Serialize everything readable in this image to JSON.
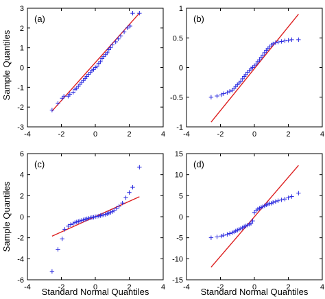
{
  "figure": {
    "ylabel": "Sample Quantiles",
    "xlabel": "Standard Normal Quantiles"
  },
  "chart_data": [
    {
      "type": "scatter",
      "panel": "(a)",
      "xlim": [
        -4,
        4
      ],
      "ylim": [
        -3,
        3
      ],
      "xticks": [
        -4,
        -2,
        0,
        2,
        4
      ],
      "yticks": [
        -3,
        -2,
        -1,
        0,
        1,
        2,
        3
      ],
      "grid": false,
      "marker_color": "#2a2adf",
      "line_color": "#dd2020",
      "reference_line": {
        "x": [
          -2.55,
          2.6
        ],
        "y": [
          -2.2,
          2.75
        ]
      },
      "points": [
        [
          -2.55,
          -2.15
        ],
        [
          -2.2,
          -1.8
        ],
        [
          -1.95,
          -1.55
        ],
        [
          -1.85,
          -1.45
        ],
        [
          -1.6,
          -1.45
        ],
        [
          -1.5,
          -1.35
        ],
        [
          -1.3,
          -1.25
        ],
        [
          -1.2,
          -1.1
        ],
        [
          -1.1,
          -1.05
        ],
        [
          -1.0,
          -0.95
        ],
        [
          -0.9,
          -0.85
        ],
        [
          -0.8,
          -0.75
        ],
        [
          -0.7,
          -0.65
        ],
        [
          -0.6,
          -0.55
        ],
        [
          -0.5,
          -0.45
        ],
        [
          -0.4,
          -0.35
        ],
        [
          -0.3,
          -0.25
        ],
        [
          -0.2,
          -0.15
        ],
        [
          -0.1,
          -0.1
        ],
        [
          0.0,
          0.0
        ],
        [
          0.1,
          0.05
        ],
        [
          0.2,
          0.2
        ],
        [
          0.3,
          0.3
        ],
        [
          0.4,
          0.45
        ],
        [
          0.5,
          0.55
        ],
        [
          0.6,
          0.65
        ],
        [
          0.7,
          0.75
        ],
        [
          0.8,
          0.9
        ],
        [
          0.9,
          1.0
        ],
        [
          1.0,
          1.15
        ],
        [
          1.2,
          1.3
        ],
        [
          1.35,
          1.45
        ],
        [
          1.5,
          1.6
        ],
        [
          1.7,
          1.8
        ],
        [
          1.9,
          2.0
        ],
        [
          2.05,
          2.1
        ],
        [
          2.2,
          2.75
        ],
        [
          2.6,
          2.75
        ]
      ]
    },
    {
      "type": "scatter",
      "panel": "(b)",
      "xlim": [
        -4,
        4
      ],
      "ylim": [
        -1,
        1
      ],
      "xticks": [
        -4,
        -2,
        0,
        2,
        4
      ],
      "yticks": [
        -1,
        -0.5,
        0,
        0.5,
        1
      ],
      "grid": false,
      "marker_color": "#2a2adf",
      "line_color": "#dd2020",
      "reference_line": {
        "x": [
          -2.55,
          2.6
        ],
        "y": [
          -0.92,
          0.9
        ]
      },
      "points": [
        [
          -2.55,
          -0.5
        ],
        [
          -2.2,
          -0.48
        ],
        [
          -1.95,
          -0.46
        ],
        [
          -1.8,
          -0.44
        ],
        [
          -1.6,
          -0.42
        ],
        [
          -1.45,
          -0.4
        ],
        [
          -1.3,
          -0.38
        ],
        [
          -1.2,
          -0.35
        ],
        [
          -1.1,
          -0.32
        ],
        [
          -1.0,
          -0.29
        ],
        [
          -0.9,
          -0.26
        ],
        [
          -0.8,
          -0.23
        ],
        [
          -0.7,
          -0.19
        ],
        [
          -0.6,
          -0.15
        ],
        [
          -0.5,
          -0.12
        ],
        [
          -0.4,
          -0.08
        ],
        [
          -0.3,
          -0.05
        ],
        [
          -0.2,
          -0.02
        ],
        [
          -0.1,
          0.0
        ],
        [
          0.0,
          0.03
        ],
        [
          0.1,
          0.06
        ],
        [
          0.2,
          0.1
        ],
        [
          0.3,
          0.13
        ],
        [
          0.4,
          0.17
        ],
        [
          0.5,
          0.21
        ],
        [
          0.6,
          0.25
        ],
        [
          0.7,
          0.29
        ],
        [
          0.8,
          0.32
        ],
        [
          0.9,
          0.35
        ],
        [
          1.0,
          0.38
        ],
        [
          1.1,
          0.4
        ],
        [
          1.25,
          0.42
        ],
        [
          1.4,
          0.43
        ],
        [
          1.6,
          0.44
        ],
        [
          1.8,
          0.45
        ],
        [
          2.0,
          0.46
        ],
        [
          2.2,
          0.47
        ],
        [
          2.6,
          0.47
        ]
      ]
    },
    {
      "type": "scatter",
      "panel": "(c)",
      "xlim": [
        -4,
        4
      ],
      "ylim": [
        -6,
        6
      ],
      "xticks": [
        -4,
        -2,
        0,
        2,
        4
      ],
      "yticks": [
        -6,
        -4,
        -2,
        0,
        2,
        4,
        6
      ],
      "grid": false,
      "marker_color": "#2a2adf",
      "line_color": "#dd2020",
      "reference_line": {
        "x": [
          -2.55,
          2.6
        ],
        "y": [
          -1.85,
          1.9
        ]
      },
      "points": [
        [
          -2.55,
          -5.2
        ],
        [
          -2.2,
          -3.1
        ],
        [
          -1.95,
          -2.1
        ],
        [
          -1.8,
          -1.2
        ],
        [
          -1.6,
          -0.9
        ],
        [
          -1.45,
          -0.75
        ],
        [
          -1.3,
          -0.65
        ],
        [
          -1.2,
          -0.55
        ],
        [
          -1.1,
          -0.5
        ],
        [
          -1.0,
          -0.45
        ],
        [
          -0.9,
          -0.4
        ],
        [
          -0.8,
          -0.35
        ],
        [
          -0.7,
          -0.3
        ],
        [
          -0.6,
          -0.25
        ],
        [
          -0.5,
          -0.2
        ],
        [
          -0.4,
          -0.15
        ],
        [
          -0.3,
          -0.1
        ],
        [
          -0.2,
          -0.08
        ],
        [
          -0.1,
          -0.05
        ],
        [
          0.0,
          0.0
        ],
        [
          0.1,
          0.03
        ],
        [
          0.2,
          0.06
        ],
        [
          0.3,
          0.1
        ],
        [
          0.4,
          0.14
        ],
        [
          0.5,
          0.18
        ],
        [
          0.6,
          0.22
        ],
        [
          0.7,
          0.28
        ],
        [
          0.8,
          0.34
        ],
        [
          0.9,
          0.4
        ],
        [
          1.0,
          0.48
        ],
        [
          1.1,
          0.6
        ],
        [
          1.25,
          0.8
        ],
        [
          1.4,
          1.0
        ],
        [
          1.6,
          1.3
        ],
        [
          1.8,
          1.8
        ],
        [
          2.0,
          2.3
        ],
        [
          2.2,
          2.8
        ],
        [
          2.6,
          4.7
        ]
      ]
    },
    {
      "type": "scatter",
      "panel": "(d)",
      "xlim": [
        -4,
        4
      ],
      "ylim": [
        -15,
        15
      ],
      "xticks": [
        -4,
        -2,
        0,
        2,
        4
      ],
      "yticks": [
        -15,
        -10,
        -5,
        0,
        5,
        10,
        15
      ],
      "grid": false,
      "marker_color": "#2a2adf",
      "line_color": "#dd2020",
      "reference_line": {
        "x": [
          -2.55,
          2.6
        ],
        "y": [
          -12.0,
          12.2
        ]
      },
      "points": [
        [
          -2.55,
          -5.0
        ],
        [
          -2.2,
          -4.8
        ],
        [
          -1.95,
          -4.6
        ],
        [
          -1.8,
          -4.4
        ],
        [
          -1.6,
          -4.2
        ],
        [
          -1.45,
          -4.0
        ],
        [
          -1.3,
          -3.8
        ],
        [
          -1.2,
          -3.6
        ],
        [
          -1.1,
          -3.4
        ],
        [
          -1.0,
          -3.2
        ],
        [
          -0.9,
          -3.0
        ],
        [
          -0.8,
          -2.8
        ],
        [
          -0.7,
          -2.6
        ],
        [
          -0.6,
          -2.4
        ],
        [
          -0.5,
          -2.2
        ],
        [
          -0.4,
          -2.0
        ],
        [
          -0.3,
          -1.8
        ],
        [
          -0.2,
          -1.6
        ],
        [
          -0.1,
          -1.0
        ],
        [
          0.0,
          1.0
        ],
        [
          0.1,
          1.5
        ],
        [
          0.2,
          1.8
        ],
        [
          0.3,
          2.0
        ],
        [
          0.4,
          2.2
        ],
        [
          0.5,
          2.4
        ],
        [
          0.6,
          2.6
        ],
        [
          0.7,
          2.8
        ],
        [
          0.8,
          3.0
        ],
        [
          0.9,
          3.1
        ],
        [
          1.0,
          3.2
        ],
        [
          1.1,
          3.4
        ],
        [
          1.25,
          3.6
        ],
        [
          1.4,
          3.8
        ],
        [
          1.6,
          4.0
        ],
        [
          1.8,
          4.2
        ],
        [
          2.0,
          4.5
        ],
        [
          2.2,
          4.8
        ],
        [
          2.6,
          5.6
        ]
      ]
    }
  ]
}
